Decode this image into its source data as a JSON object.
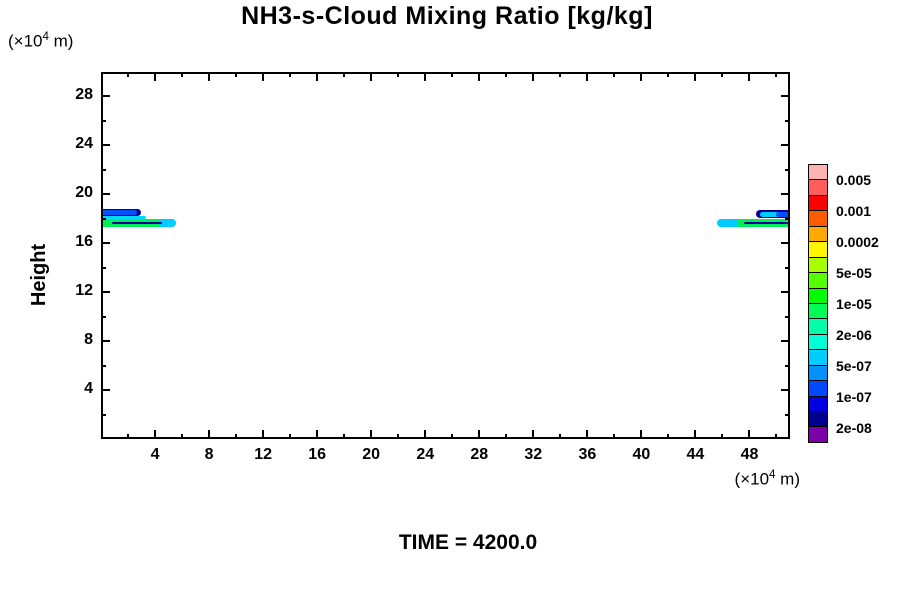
{
  "chart_data": {
    "type": "contour",
    "title": "NH3-s-Cloud Mixing Ratio [kg/kg]",
    "ylabel": "Height",
    "xlabel": "",
    "y_unit": {
      "pre": "(×10",
      "sup": "4",
      "post": " m)"
    },
    "x_unit": {
      "pre": "(×10",
      "sup": "4",
      "post": " m)"
    },
    "time_annotation": "TIME = 4200.0",
    "x_range": [
      0,
      51
    ],
    "y_range": [
      0,
      30
    ],
    "grid": false,
    "x_ticks_major": [
      4,
      8,
      12,
      16,
      20,
      24,
      28,
      32,
      36,
      40,
      44,
      48
    ],
    "x_ticks_minor": [
      2,
      6,
      10,
      14,
      18,
      22,
      26,
      30,
      34,
      38,
      42,
      46,
      50
    ],
    "y_ticks_major": [
      4,
      8,
      12,
      16,
      20,
      24,
      28
    ],
    "y_ticks_minor": [
      2,
      6,
      10,
      14,
      18,
      22,
      26
    ],
    "colorbar": {
      "position": "right",
      "levels": [
        "0.005",
        "0.001",
        "0.0002",
        "5e-05",
        "1e-05",
        "2e-06",
        "5e-07",
        "1e-07",
        "2e-08"
      ],
      "label_boundaries": [
        1,
        3,
        5,
        7,
        9,
        11,
        13,
        15,
        17
      ],
      "colors_top_to_bottom": [
        "#ffb2b2",
        "#ff5c5c",
        "#ff0000",
        "#ff5c00",
        "#ffa800",
        "#fff600",
        "#a8ff00",
        "#54ff00",
        "#00ff00",
        "#00ff54",
        "#00ffa8",
        "#00ffd6",
        "#00ccff",
        "#0090ff",
        "#0048ff",
        "#0000e0",
        "#000090",
        "#7c00a8"
      ]
    },
    "clouds": [
      {
        "name": "left-cloud",
        "x_extent": [
          0,
          5.6
        ],
        "y_extent": [
          17.3,
          18.8
        ],
        "shapes": [
          {
            "x0": 0,
            "x1": 2.95,
            "y0": 18.2,
            "y1": 18.82,
            "color": "#000099",
            "radius": "0 8px 8px 0"
          },
          {
            "x0": 0,
            "x1": 2.65,
            "y0": 18.3,
            "y1": 18.72,
            "color": "#0050ff",
            "radius": "0 7px 7px 0"
          },
          {
            "x0": 0,
            "x1": 3.3,
            "y0": 17.95,
            "y1": 18.2,
            "color": "#00d8ff",
            "radius": "0 5px 5px 0"
          },
          {
            "x0": 0,
            "x1": 5.55,
            "y0": 17.32,
            "y1": 18.0,
            "color": "#00ccff",
            "radius": "0 8px 8px 0"
          },
          {
            "x0": 0,
            "x1": 4.4,
            "y0": 17.32,
            "y1": 18.0,
            "color": "#00ee55",
            "radius": "0"
          },
          {
            "x0": 0.8,
            "x1": 4.55,
            "y0": 17.6,
            "y1": 17.76,
            "color": "#000099",
            "radius": "3px"
          }
        ]
      },
      {
        "name": "right-cloud",
        "x_extent": [
          45.6,
          51
        ],
        "y_extent": [
          17.3,
          18.7
        ],
        "shapes": [
          {
            "x0": 48.5,
            "x1": 51,
            "y0": 18.05,
            "y1": 18.68,
            "color": "#000099",
            "radius": "8px 0 0 8px"
          },
          {
            "x0": 48.8,
            "x1": 51,
            "y0": 18.16,
            "y1": 18.58,
            "color": "#00ccff",
            "radius": "7px 0 0 7px"
          },
          {
            "x0": 49.95,
            "x1": 51,
            "y0": 18.16,
            "y1": 18.58,
            "color": "#0050ff",
            "radius": "5px 0 0 5px"
          },
          {
            "x0": 45.6,
            "x1": 51,
            "y0": 17.32,
            "y1": 18.0,
            "color": "#00ccff",
            "radius": "8px 0 0 8px"
          },
          {
            "x0": 47.15,
            "x1": 51,
            "y0": 17.32,
            "y1": 18.0,
            "color": "#00ee55",
            "radius": "0"
          },
          {
            "x0": 47.6,
            "x1": 50.85,
            "y0": 17.58,
            "y1": 17.74,
            "color": "#000099",
            "radius": "3px"
          }
        ]
      }
    ]
  }
}
